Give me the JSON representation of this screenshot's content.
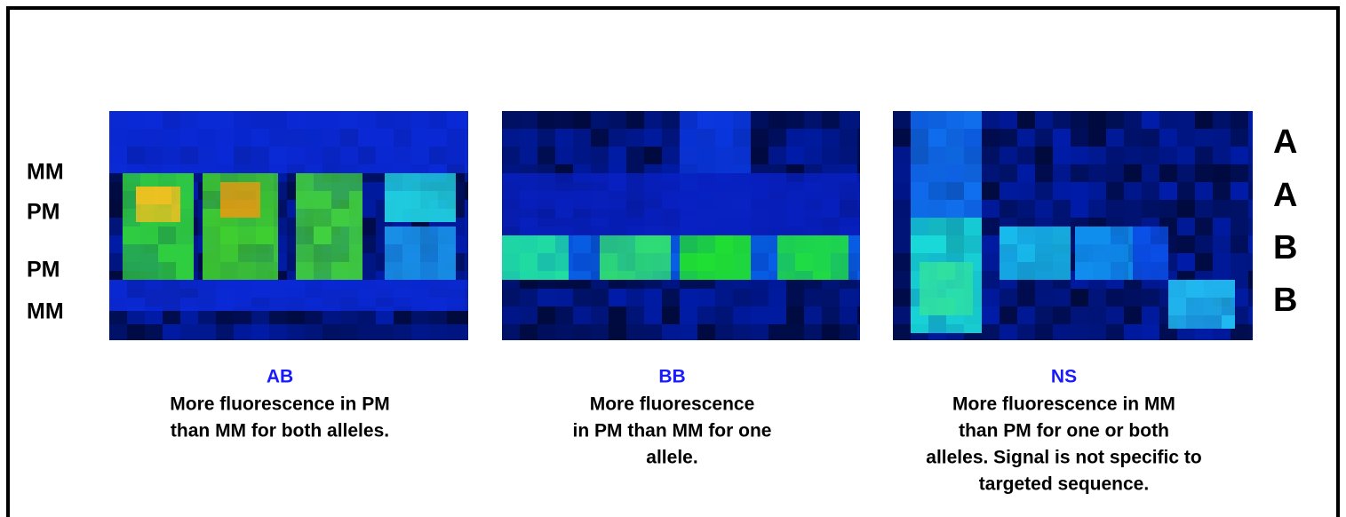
{
  "row_labels_left": [
    "MM",
    "PM",
    "PM",
    "MM"
  ],
  "row_labels_right": [
    "A",
    "A",
    "B",
    "B"
  ],
  "panels": [
    {
      "label": "AB",
      "caption": [
        "More fluorescence  in PM",
        "than MM for both alleles."
      ]
    },
    {
      "label": "BB",
      "caption": [
        "More fluorescence",
        "in PM than MM for one",
        "allele."
      ]
    },
    {
      "label": "NS",
      "caption": [
        "More fluorescence in MM",
        "than PM for one or both",
        "alleles. Signal is not specific to",
        "targeted sequence."
      ]
    }
  ]
}
